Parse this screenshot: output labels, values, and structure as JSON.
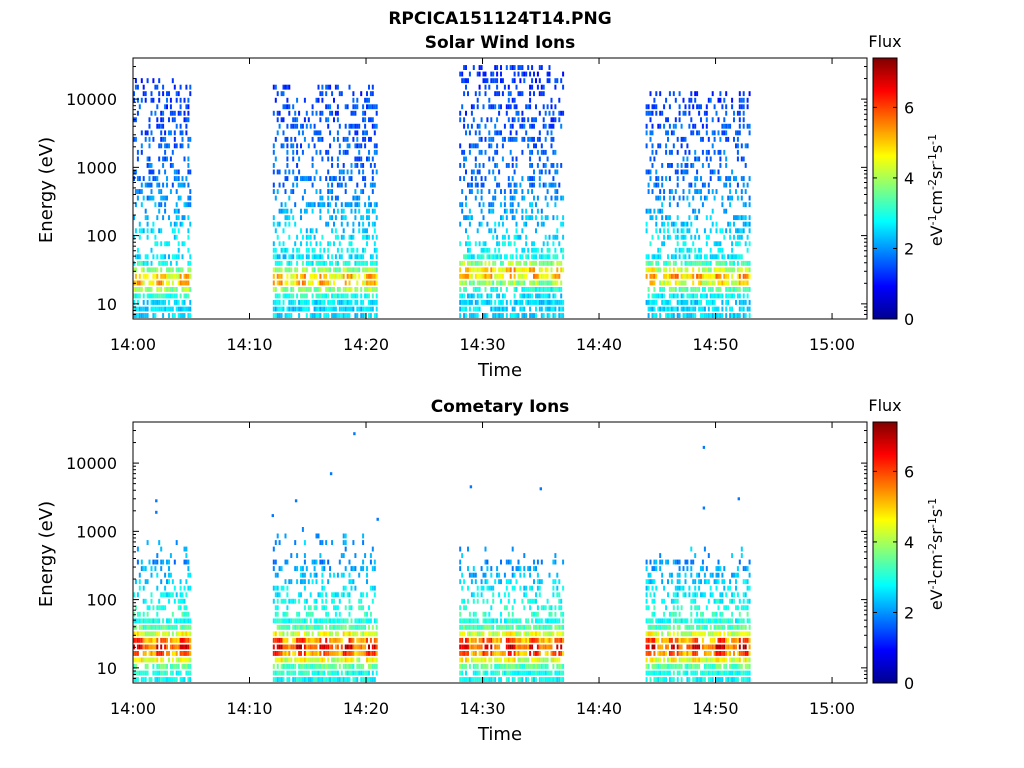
{
  "figure_title": "RPCICA151124T14.PNG",
  "chart_data": [
    {
      "type": "heatmap",
      "title": "Solar Wind Ions",
      "xlabel": "Time",
      "ylabel": "Energy (eV)",
      "xlim": [
        "14:00",
        "15:03"
      ],
      "x_ticks": [
        "14:00",
        "14:10",
        "14:20",
        "14:30",
        "14:40",
        "14:50",
        "15:00"
      ],
      "y_scale": "log",
      "ylim": [
        6,
        40000
      ],
      "y_ticks": [
        10,
        100,
        1000,
        10000
      ],
      "y_tick_labels": [
        "10",
        "100",
        "1000",
        "10000"
      ],
      "grid": false,
      "colorbar": {
        "title": "Flux",
        "label": "eV-1cm-2sr-1s-1",
        "range": [
          0,
          7.4
        ],
        "ticks": [
          0,
          2,
          4,
          6
        ],
        "colormap": "jet"
      },
      "data_intervals": [
        {
          "start": "14:00",
          "end": "14:05",
          "energy_range_eV": [
            6,
            20000
          ],
          "peak_energy_eV": 20,
          "peak_flux": 5.5
        },
        {
          "start": "14:12",
          "end": "14:21",
          "energy_range_eV": [
            6,
            16000
          ],
          "peak_energy_eV": 20,
          "peak_flux": 5.8
        },
        {
          "start": "14:28",
          "end": "14:37",
          "energy_range_eV": [
            6,
            30000
          ],
          "peak_energy_eV": 25,
          "peak_flux": 5.8
        },
        {
          "start": "14:44",
          "end": "14:53",
          "energy_range_eV": [
            6,
            13000
          ],
          "peak_energy_eV": 22,
          "peak_flux": 5.5
        }
      ]
    },
    {
      "type": "heatmap",
      "title": "Cometary Ions",
      "xlabel": "Time",
      "ylabel": "Energy (eV)",
      "xlim": [
        "14:00",
        "15:03"
      ],
      "x_ticks": [
        "14:00",
        "14:10",
        "14:20",
        "14:30",
        "14:40",
        "14:50",
        "15:00"
      ],
      "y_scale": "log",
      "ylim": [
        6,
        40000
      ],
      "y_ticks": [
        10,
        100,
        1000,
        10000
      ],
      "y_tick_labels": [
        "10",
        "100",
        "1000",
        "10000"
      ],
      "grid": false,
      "colorbar": {
        "title": "Flux",
        "label": "eV-1cm-2sr-1s-1",
        "range": [
          0,
          7.4
        ],
        "ticks": [
          0,
          2,
          4,
          6
        ],
        "colormap": "jet"
      },
      "data_intervals": [
        {
          "start": "14:00",
          "end": "14:05",
          "energy_range_eV": [
            6,
            700
          ],
          "peak_energy_eV": 18,
          "peak_flux": 6.5
        },
        {
          "start": "14:12",
          "end": "14:21",
          "energy_range_eV": [
            6,
            1000
          ],
          "peak_energy_eV": 18,
          "peak_flux": 6.8
        },
        {
          "start": "14:28",
          "end": "14:37",
          "energy_range_eV": [
            6,
            600
          ],
          "peak_energy_eV": 18,
          "peak_flux": 6.8
        },
        {
          "start": "14:44",
          "end": "14:53",
          "energy_range_eV": [
            6,
            600
          ],
          "peak_energy_eV": 18,
          "peak_flux": 6.8
        }
      ],
      "sparse_points": [
        {
          "time": "14:19",
          "energy_eV": 27000
        },
        {
          "time": "14:17",
          "energy_eV": 7000
        },
        {
          "time": "14:49",
          "energy_eV": 17000
        },
        {
          "time": "14:29",
          "energy_eV": 4500
        },
        {
          "time": "14:35",
          "energy_eV": 4200
        },
        {
          "time": "14:52",
          "energy_eV": 3000
        },
        {
          "time": "14:02",
          "energy_eV": 2800
        },
        {
          "time": "14:14",
          "energy_eV": 2800
        },
        {
          "time": "14:49",
          "energy_eV": 2200
        },
        {
          "time": "14:02",
          "energy_eV": 1900
        },
        {
          "time": "14:12",
          "energy_eV": 1700
        },
        {
          "time": "14:21",
          "energy_eV": 1500
        }
      ]
    }
  ]
}
